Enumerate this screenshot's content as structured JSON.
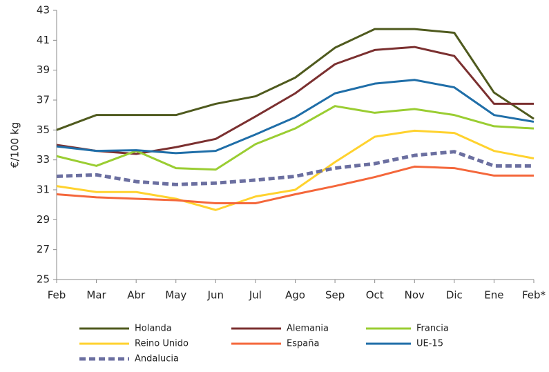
{
  "chart_data": {
    "type": "line",
    "y_label": "€/100 kg",
    "categories": [
      "Feb",
      "Mar",
      "Abr",
      "May",
      "Jun",
      "Jul",
      "Ago",
      "Sep",
      "Oct",
      "Nov",
      "Dic",
      "Ene",
      "Feb*"
    ],
    "ylim": [
      25,
      43
    ],
    "yticks": [
      25,
      27,
      29,
      31,
      33,
      35,
      37,
      39,
      41,
      43
    ],
    "grid": false,
    "series": [
      {
        "name": "Holanda",
        "color": "#4f5a1e",
        "values": [
          35.0,
          36.0,
          36.0,
          36.0,
          36.75,
          37.25,
          38.5,
          40.5,
          41.75,
          41.75,
          41.5,
          37.5,
          35.75
        ]
      },
      {
        "name": "Alemania",
        "color": "#7b3030",
        "values": [
          34.0,
          33.6,
          33.4,
          33.85,
          34.4,
          35.9,
          37.45,
          39.4,
          40.35,
          40.55,
          39.95,
          36.75,
          36.75
        ]
      },
      {
        "name": "Francia",
        "color": "#9acd32",
        "values": [
          33.25,
          32.6,
          33.6,
          32.45,
          32.35,
          34.05,
          35.1,
          36.6,
          36.15,
          36.4,
          36.0,
          35.25,
          35.1
        ]
      },
      {
        "name": "Reino Unido",
        "color": "#ffd22e",
        "values": [
          31.25,
          30.85,
          30.85,
          30.4,
          29.65,
          30.55,
          31.0,
          32.85,
          34.55,
          34.95,
          34.8,
          33.6,
          33.1
        ]
      },
      {
        "name": "España",
        "color": "#f4673b",
        "values": [
          30.7,
          30.5,
          30.4,
          30.3,
          30.1,
          30.1,
          30.7,
          31.25,
          31.85,
          32.55,
          32.45,
          31.95,
          31.95
        ]
      },
      {
        "name": "UE-15",
        "color": "#1f6ea8",
        "values": [
          33.9,
          33.6,
          33.65,
          33.45,
          33.6,
          34.7,
          35.85,
          37.45,
          38.1,
          38.35,
          37.85,
          36.0,
          35.55
        ]
      },
      {
        "name": "Andalucia",
        "color": "#6b6fa0",
        "dash": true,
        "values": [
          31.9,
          32.0,
          31.55,
          31.35,
          31.45,
          31.65,
          31.9,
          32.45,
          32.75,
          33.3,
          33.55,
          32.6,
          32.6
        ]
      }
    ]
  }
}
